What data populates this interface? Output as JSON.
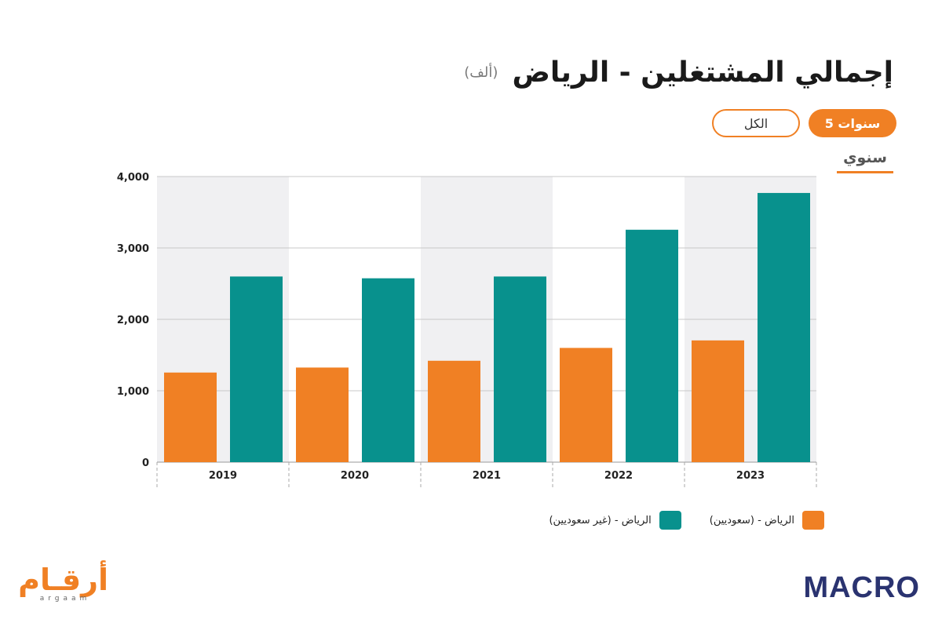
{
  "header": {
    "title": "إجمالي المشتغلين - الرياض",
    "unit": "(ألف)"
  },
  "filters": {
    "active_label": "5 سنوات",
    "inactive_label": "الكل",
    "period_label": "سنوي"
  },
  "legend": {
    "saudi": "الرياض - (سعوديين)",
    "non_saudi": "الرياض - (غير سعوديين)"
  },
  "logos": {
    "left_main": "أرقـام",
    "left_sub": "argaam",
    "right": "MACRO"
  },
  "colors": {
    "saudi": "#f08024",
    "non_saudi": "#08918d",
    "band": "#f0f0f2",
    "accent": "#f08024"
  },
  "chart_data": {
    "type": "bar",
    "categories": [
      "2019",
      "2020",
      "2021",
      "2022",
      "2023"
    ],
    "series": [
      {
        "name": "الرياض - (سعوديين)",
        "values": [
          1255,
          1325,
          1420,
          1600,
          1705
        ]
      },
      {
        "name": "الرياض - (غير سعوديين)",
        "values": [
          2600,
          2575,
          2600,
          3255,
          3770
        ]
      }
    ],
    "yticks": [
      "0",
      "1,000",
      "2,000",
      "3,000",
      "4,000"
    ],
    "ylim": [
      0,
      4000
    ],
    "grid": true,
    "legend_position": "bottom"
  }
}
